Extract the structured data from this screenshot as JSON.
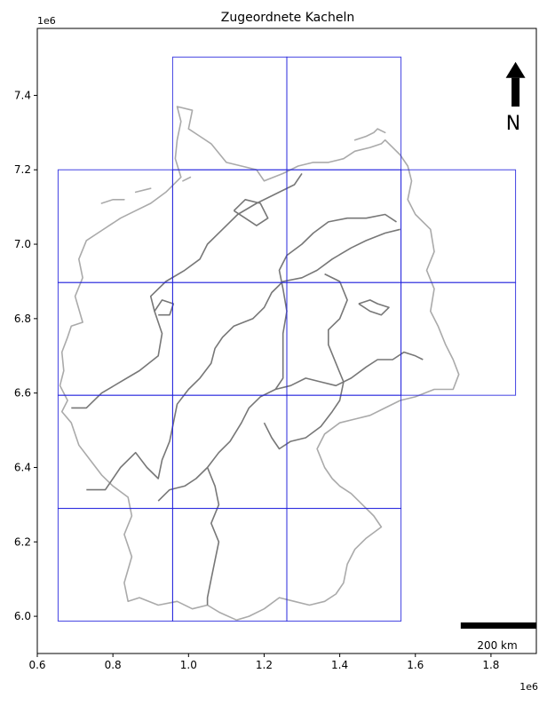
{
  "title": "Zugeordnete Kacheln",
  "x_offset_label": "1e6",
  "y_offset_label": "1e6",
  "north_label": "N",
  "scalebar_label": "200 km",
  "colors": {
    "tile_border": "#2222dd",
    "outer_border": "#aaaaaa",
    "state_border": "#777777",
    "axis": "#000000"
  },
  "chart_data": {
    "type": "map",
    "xlim": [
      0.6,
      1.92
    ],
    "ylim": [
      5.9,
      7.58
    ],
    "x_ticks": [
      0.6,
      0.8,
      1.0,
      1.2,
      1.4,
      1.6,
      1.8
    ],
    "y_ticks": [
      6.0,
      6.2,
      6.4,
      6.6,
      6.8,
      7.0,
      7.2,
      7.4
    ],
    "x_tick_labels": [
      "0.6",
      "0.8",
      "1.0",
      "1.2",
      "1.4",
      "1.6",
      "1.8"
    ],
    "y_tick_labels": [
      "6.0",
      "6.2",
      "6.4",
      "6.6",
      "6.8",
      "7.0",
      "7.2",
      "7.4"
    ],
    "tiles": [
      {
        "x": [
          0.958,
          1.26
        ],
        "y": [
          7.2,
          7.503
        ]
      },
      {
        "x": [
          1.26,
          1.562
        ],
        "y": [
          7.2,
          7.503
        ]
      },
      {
        "x": [
          0.655,
          0.958
        ],
        "y": [
          6.897,
          7.2
        ]
      },
      {
        "x": [
          0.958,
          1.26
        ],
        "y": [
          6.897,
          7.2
        ]
      },
      {
        "x": [
          1.26,
          1.562
        ],
        "y": [
          6.897,
          7.2
        ]
      },
      {
        "x": [
          1.562,
          1.865
        ],
        "y": [
          6.897,
          7.2
        ]
      },
      {
        "x": [
          0.655,
          0.958
        ],
        "y": [
          6.594,
          6.897
        ]
      },
      {
        "x": [
          0.958,
          1.26
        ],
        "y": [
          6.594,
          6.897
        ]
      },
      {
        "x": [
          1.26,
          1.562
        ],
        "y": [
          6.594,
          6.897
        ]
      },
      {
        "x": [
          1.562,
          1.865
        ],
        "y": [
          6.594,
          6.897
        ]
      },
      {
        "x": [
          0.655,
          0.958
        ],
        "y": [
          6.29,
          6.594
        ]
      },
      {
        "x": [
          0.958,
          1.26
        ],
        "y": [
          6.29,
          6.594
        ]
      },
      {
        "x": [
          1.26,
          1.562
        ],
        "y": [
          6.29,
          6.594
        ]
      },
      {
        "x": [
          0.655,
          0.958
        ],
        "y": [
          5.987,
          6.29
        ]
      },
      {
        "x": [
          0.958,
          1.26
        ],
        "y": [
          5.987,
          6.29
        ]
      },
      {
        "x": [
          1.26,
          1.562
        ],
        "y": [
          5.987,
          6.29
        ]
      }
    ],
    "outer_border": [
      [
        1.127,
        5.99
      ],
      [
        1.083,
        6.01
      ],
      [
        1.05,
        6.03
      ],
      [
        1.01,
        6.02
      ],
      [
        0.97,
        6.04
      ],
      [
        0.92,
        6.03
      ],
      [
        0.87,
        6.05
      ],
      [
        0.84,
        6.04
      ],
      [
        0.83,
        6.09
      ],
      [
        0.85,
        6.16
      ],
      [
        0.83,
        6.22
      ],
      [
        0.85,
        6.27
      ],
      [
        0.84,
        6.32
      ],
      [
        0.8,
        6.35
      ],
      [
        0.77,
        6.38
      ],
      [
        0.74,
        6.42
      ],
      [
        0.71,
        6.46
      ],
      [
        0.69,
        6.52
      ],
      [
        0.665,
        6.55
      ],
      [
        0.68,
        6.58
      ],
      [
        0.66,
        6.62
      ],
      [
        0.67,
        6.66
      ],
      [
        0.665,
        6.71
      ],
      [
        0.68,
        6.75
      ],
      [
        0.69,
        6.78
      ],
      [
        0.72,
        6.79
      ],
      [
        0.7,
        6.86
      ],
      [
        0.72,
        6.91
      ],
      [
        0.71,
        6.96
      ],
      [
        0.73,
        7.01
      ],
      [
        0.76,
        7.03
      ],
      [
        0.79,
        7.05
      ],
      [
        0.82,
        7.07
      ],
      [
        0.86,
        7.09
      ],
      [
        0.9,
        7.11
      ],
      [
        0.94,
        7.14
      ],
      [
        0.98,
        7.18
      ],
      [
        0.965,
        7.23
      ],
      [
        0.97,
        7.28
      ],
      [
        0.98,
        7.33
      ],
      [
        0.97,
        7.37
      ],
      [
        1.01,
        7.36
      ],
      [
        1.0,
        7.31
      ],
      [
        1.03,
        7.29
      ],
      [
        1.06,
        7.27
      ],
      [
        1.1,
        7.22
      ],
      [
        1.14,
        7.21
      ],
      [
        1.18,
        7.2
      ],
      [
        1.2,
        7.17
      ],
      [
        1.25,
        7.19
      ],
      [
        1.29,
        7.21
      ],
      [
        1.33,
        7.22
      ],
      [
        1.37,
        7.22
      ],
      [
        1.41,
        7.23
      ],
      [
        1.44,
        7.25
      ],
      [
        1.48,
        7.26
      ],
      [
        1.51,
        7.27
      ],
      [
        1.52,
        7.28
      ],
      [
        1.54,
        7.26
      ],
      [
        1.56,
        7.24
      ],
      [
        1.58,
        7.21
      ],
      [
        1.59,
        7.17
      ],
      [
        1.58,
        7.12
      ],
      [
        1.6,
        7.08
      ],
      [
        1.64,
        7.04
      ],
      [
        1.65,
        6.98
      ],
      [
        1.63,
        6.93
      ],
      [
        1.65,
        6.88
      ],
      [
        1.64,
        6.82
      ],
      [
        1.66,
        6.78
      ],
      [
        1.68,
        6.73
      ],
      [
        1.7,
        6.69
      ],
      [
        1.715,
        6.65
      ],
      [
        1.7,
        6.61
      ],
      [
        1.65,
        6.61
      ],
      [
        1.6,
        6.59
      ],
      [
        1.56,
        6.58
      ],
      [
        1.52,
        6.56
      ],
      [
        1.48,
        6.54
      ],
      [
        1.44,
        6.53
      ],
      [
        1.4,
        6.52
      ],
      [
        1.36,
        6.49
      ],
      [
        1.34,
        6.45
      ],
      [
        1.36,
        6.4
      ],
      [
        1.38,
        6.37
      ],
      [
        1.4,
        6.35
      ],
      [
        1.43,
        6.33
      ],
      [
        1.46,
        6.3
      ],
      [
        1.49,
        6.27
      ],
      [
        1.51,
        6.24
      ],
      [
        1.47,
        6.21
      ],
      [
        1.44,
        6.18
      ],
      [
        1.42,
        6.14
      ],
      [
        1.41,
        6.09
      ],
      [
        1.39,
        6.06
      ],
      [
        1.36,
        6.04
      ],
      [
        1.32,
        6.03
      ],
      [
        1.28,
        6.04
      ],
      [
        1.24,
        6.05
      ],
      [
        1.2,
        6.02
      ],
      [
        1.16,
        6.0
      ],
      [
        1.127,
        5.99
      ]
    ],
    "state_borders": [
      [
        [
          0.69,
          6.56
        ],
        [
          0.73,
          6.56
        ],
        [
          0.77,
          6.6
        ],
        [
          0.82,
          6.63
        ],
        [
          0.87,
          6.66
        ],
        [
          0.92,
          6.7
        ],
        [
          0.93,
          6.76
        ],
        [
          0.91,
          6.82
        ],
        [
          0.9,
          6.86
        ],
        [
          0.94,
          6.9
        ],
        [
          0.99,
          6.93
        ],
        [
          1.03,
          6.96
        ],
        [
          1.05,
          7.0
        ],
        [
          1.09,
          7.04
        ],
        [
          1.13,
          7.08
        ],
        [
          1.18,
          7.11
        ],
        [
          1.24,
          7.14
        ],
        [
          1.28,
          7.16
        ],
        [
          1.3,
          7.19
        ]
      ],
      [
        [
          0.73,
          6.34
        ],
        [
          0.78,
          6.34
        ],
        [
          0.82,
          6.4
        ],
        [
          0.86,
          6.44
        ],
        [
          0.89,
          6.4
        ],
        [
          0.92,
          6.37
        ],
        [
          0.93,
          6.42
        ],
        [
          0.95,
          6.47
        ],
        [
          0.96,
          6.52
        ],
        [
          0.97,
          6.57
        ],
        [
          1.0,
          6.61
        ],
        [
          1.03,
          6.64
        ],
        [
          1.06,
          6.68
        ],
        [
          1.07,
          6.72
        ],
        [
          1.09,
          6.75
        ],
        [
          1.12,
          6.78
        ],
        [
          1.17,
          6.8
        ],
        [
          1.2,
          6.83
        ],
        [
          1.22,
          6.87
        ],
        [
          1.25,
          6.9
        ],
        [
          1.3,
          6.91
        ],
        [
          1.34,
          6.93
        ],
        [
          1.38,
          6.96
        ],
        [
          1.43,
          6.99
        ],
        [
          1.47,
          7.01
        ],
        [
          1.52,
          7.03
        ],
        [
          1.56,
          7.04
        ]
      ],
      [
        [
          0.92,
          6.31
        ],
        [
          0.95,
          6.34
        ],
        [
          0.99,
          6.35
        ],
        [
          1.02,
          6.37
        ],
        [
          1.05,
          6.4
        ],
        [
          1.08,
          6.44
        ],
        [
          1.11,
          6.47
        ],
        [
          1.14,
          6.52
        ],
        [
          1.16,
          6.56
        ],
        [
          1.19,
          6.59
        ],
        [
          1.23,
          6.61
        ],
        [
          1.27,
          6.62
        ],
        [
          1.31,
          6.64
        ],
        [
          1.35,
          6.63
        ],
        [
          1.39,
          6.62
        ],
        [
          1.43,
          6.64
        ],
        [
          1.47,
          6.67
        ],
        [
          1.5,
          6.69
        ],
        [
          1.54,
          6.69
        ],
        [
          1.57,
          6.71
        ],
        [
          1.6,
          6.7
        ],
        [
          1.62,
          6.69
        ]
      ],
      [
        [
          1.05,
          6.4
        ],
        [
          1.07,
          6.35
        ],
        [
          1.08,
          6.3
        ],
        [
          1.06,
          6.25
        ],
        [
          1.08,
          6.2
        ],
        [
          1.07,
          6.15
        ],
        [
          1.06,
          6.1
        ],
        [
          1.05,
          6.05
        ],
        [
          1.05,
          6.03
        ]
      ],
      [
        [
          1.23,
          6.61
        ],
        [
          1.25,
          6.64
        ],
        [
          1.25,
          6.7
        ],
        [
          1.25,
          6.76
        ],
        [
          1.26,
          6.82
        ],
        [
          1.25,
          6.88
        ],
        [
          1.24,
          6.93
        ],
        [
          1.26,
          6.97
        ],
        [
          1.3,
          7.0
        ],
        [
          1.33,
          7.03
        ],
        [
          1.37,
          7.06
        ],
        [
          1.42,
          7.07
        ],
        [
          1.47,
          7.07
        ],
        [
          1.52,
          7.08
        ],
        [
          1.55,
          7.06
        ]
      ],
      [
        [
          1.2,
          6.52
        ],
        [
          1.22,
          6.48
        ],
        [
          1.24,
          6.45
        ],
        [
          1.27,
          6.47
        ],
        [
          1.31,
          6.48
        ],
        [
          1.35,
          6.51
        ],
        [
          1.38,
          6.55
        ],
        [
          1.4,
          6.58
        ],
        [
          1.41,
          6.63
        ],
        [
          1.39,
          6.68
        ],
        [
          1.37,
          6.73
        ],
        [
          1.37,
          6.77
        ],
        [
          1.4,
          6.8
        ],
        [
          1.42,
          6.85
        ],
        [
          1.4,
          6.9
        ],
        [
          1.36,
          6.92
        ]
      ],
      [
        [
          1.45,
          6.84
        ],
        [
          1.48,
          6.85
        ],
        [
          1.5,
          6.84
        ],
        [
          1.53,
          6.83
        ],
        [
          1.51,
          6.81
        ],
        [
          1.48,
          6.82
        ],
        [
          1.45,
          6.84
        ]
      ],
      [
        [
          1.12,
          7.09
        ],
        [
          1.15,
          7.12
        ],
        [
          1.19,
          7.11
        ],
        [
          1.21,
          7.07
        ],
        [
          1.18,
          7.05
        ],
        [
          1.15,
          7.07
        ],
        [
          1.12,
          7.09
        ]
      ],
      [
        [
          0.91,
          6.82
        ],
        [
          0.93,
          6.85
        ],
        [
          0.96,
          6.84
        ],
        [
          0.95,
          6.81
        ],
        [
          0.92,
          6.81
        ]
      ]
    ],
    "islands": [
      [
        [
          0.77,
          7.11
        ],
        [
          0.8,
          7.12
        ],
        [
          0.83,
          7.12
        ]
      ],
      [
        [
          0.86,
          7.14
        ],
        [
          0.9,
          7.15
        ]
      ],
      [
        [
          0.985,
          7.17
        ],
        [
          1.005,
          7.18
        ]
      ],
      [
        [
          1.44,
          7.28
        ],
        [
          1.47,
          7.29
        ],
        [
          1.49,
          7.3
        ],
        [
          1.5,
          7.31
        ],
        [
          1.52,
          7.3
        ]
      ]
    ],
    "north_arrow": {
      "x": 1.865,
      "y_base": 7.37,
      "y_tip": 7.49
    },
    "scalebar": {
      "x": [
        1.72,
        1.92
      ],
      "y": 5.975,
      "length_km": 200
    }
  }
}
